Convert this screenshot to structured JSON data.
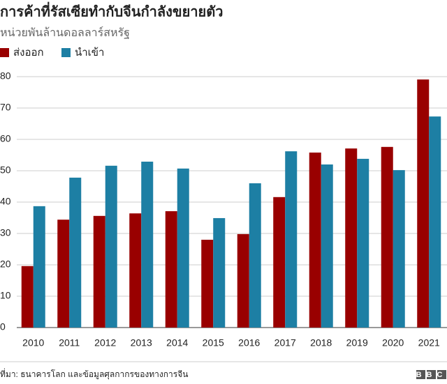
{
  "chart_data": {
    "type": "bar",
    "title": "การค้าที่รัสเซียทำกับจีนกำลังขยายตัว",
    "subtitle": "หน่วยพันล้านดอลลาร์สหรัฐ",
    "categories": [
      "2010",
      "2011",
      "2012",
      "2013",
      "2014",
      "2015",
      "2016",
      "2017",
      "2018",
      "2019",
      "2020",
      "2021"
    ],
    "series": [
      {
        "name": "ส่งออก",
        "color": "#990000",
        "values": [
          19.6,
          34.4,
          35.6,
          36.4,
          37.1,
          28,
          29.8,
          41.6,
          55.8,
          57.1,
          57.6,
          79.1
        ]
      },
      {
        "name": "นำเข้า",
        "color": "#1d7fa4",
        "values": [
          38.7,
          47.8,
          51.6,
          52.9,
          50.7,
          34.9,
          46,
          56.2,
          52,
          53.8,
          50.2,
          67.3
        ]
      }
    ],
    "ylim": [
      0,
      80
    ],
    "yticks": [
      0,
      10,
      20,
      30,
      40,
      50,
      60,
      70,
      80
    ],
    "grid": true,
    "source": "ที่มา: ธนาคารโลก และข้อมูลศุลกากรของทางการจีน",
    "logo": "BBC"
  }
}
